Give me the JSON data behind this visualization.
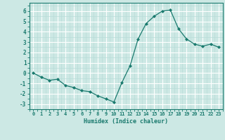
{
  "x": [
    0,
    1,
    2,
    3,
    4,
    5,
    6,
    7,
    8,
    9,
    10,
    11,
    12,
    13,
    14,
    15,
    16,
    17,
    18,
    19,
    20,
    21,
    22,
    23
  ],
  "y": [
    0.0,
    -0.4,
    -0.7,
    -0.6,
    -1.2,
    -1.4,
    -1.7,
    -1.8,
    -2.2,
    -2.5,
    -2.8,
    -0.9,
    0.7,
    3.3,
    4.8,
    5.5,
    6.0,
    6.1,
    4.3,
    3.3,
    2.8,
    2.6,
    2.8,
    2.5
  ],
  "line_color": "#1a7a6e",
  "marker": "D",
  "marker_size": 2.0,
  "bg_color": "#cce8e4",
  "xlabel": "Humidex (Indice chaleur)",
  "ylim": [
    -3.5,
    6.8
  ],
  "xlim": [
    -0.5,
    23.5
  ],
  "yticks": [
    -3,
    -2,
    -1,
    0,
    1,
    2,
    3,
    4,
    5,
    6
  ],
  "xticks": [
    0,
    1,
    2,
    3,
    4,
    5,
    6,
    7,
    8,
    9,
    10,
    11,
    12,
    13,
    14,
    15,
    16,
    17,
    18,
    19,
    20,
    21,
    22,
    23
  ],
  "axis_color": "#1a7a6e",
  "tick_color": "#1a7a6e",
  "label_color": "#1a7a6e",
  "grid_major_color": "#ffffff",
  "grid_minor_color": "#b8dcd8"
}
